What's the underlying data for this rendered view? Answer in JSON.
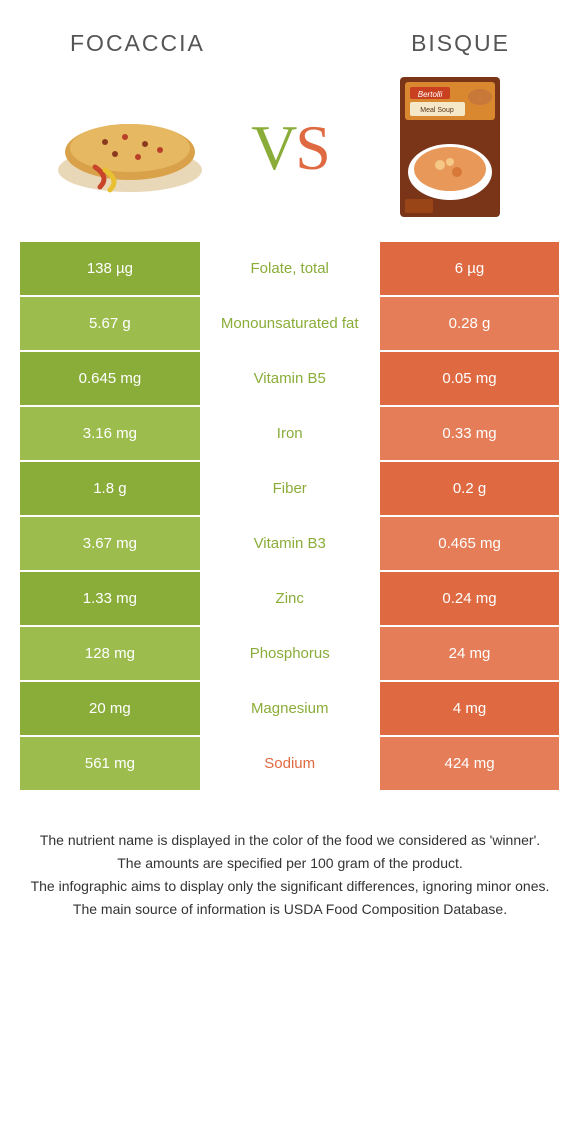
{
  "header": {
    "left_title": "Focaccia",
    "right_title": "Bisque"
  },
  "vs_label": {
    "left": "V",
    "right": "S"
  },
  "colors": {
    "left_food": "#8aad3a",
    "right_food": "#df6a41",
    "left_bg_dark": "#8aad3a",
    "left_bg_light": "#9cbd4e",
    "right_bg_dark": "#df6a41",
    "right_bg_light": "#e47d58",
    "mid_color_left": "#8aad3a",
    "mid_color_right": "#df6a41",
    "text_white": "#ffffff"
  },
  "table": {
    "rows": [
      {
        "left": "138 µg",
        "label": "Folate, total",
        "right": "6 µg",
        "winner": "left"
      },
      {
        "left": "5.67 g",
        "label": "Monounsaturated fat",
        "right": "0.28 g",
        "winner": "left"
      },
      {
        "left": "0.645 mg",
        "label": "Vitamin B5",
        "right": "0.05 mg",
        "winner": "left"
      },
      {
        "left": "3.16 mg",
        "label": "Iron",
        "right": "0.33 mg",
        "winner": "left"
      },
      {
        "left": "1.8 g",
        "label": "Fiber",
        "right": "0.2 g",
        "winner": "left"
      },
      {
        "left": "3.67 mg",
        "label": "Vitamin B3",
        "right": "0.465 mg",
        "winner": "left"
      },
      {
        "left": "1.33 mg",
        "label": "Zinc",
        "right": "0.24 mg",
        "winner": "left"
      },
      {
        "left": "128 mg",
        "label": "Phosphorus",
        "right": "24 mg",
        "winner": "left"
      },
      {
        "left": "20 mg",
        "label": "Magnesium",
        "right": "4 mg",
        "winner": "left"
      },
      {
        "left": "561 mg",
        "label": "Sodium",
        "right": "424 mg",
        "winner": "right"
      }
    ]
  },
  "footer": {
    "line1": "The nutrient name is displayed in the color of the food we considered as 'winner'.",
    "line2": "The amounts are specified per 100 gram of the product.",
    "line3": "The infographic aims to display only the significant differences, ignoring minor ones.",
    "line4": "The main source of information is USDA Food Composition Database."
  }
}
